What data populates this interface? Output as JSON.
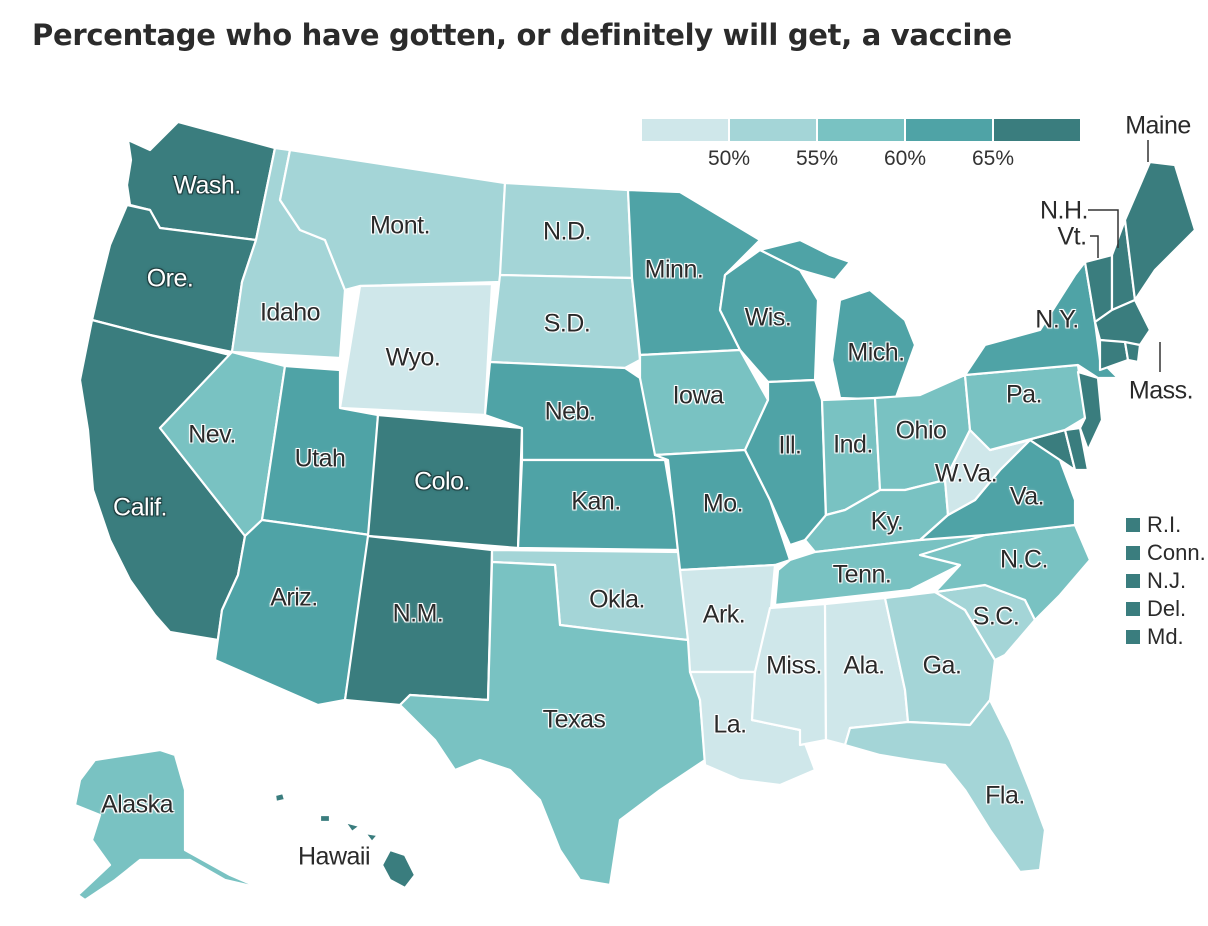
{
  "title": "Percentage who have gotten, or definitely will get, a vaccine",
  "colors": {
    "c1": "#cfe7ea",
    "c2": "#a4d5d7",
    "c3": "#79c2c2",
    "c4": "#4fa3a6",
    "c5": "#3a7d7e"
  },
  "legend": {
    "swatches": [
      "c1",
      "c2",
      "c3",
      "c4",
      "c5"
    ],
    "ticks": [
      "50%",
      "55%",
      "60%",
      "65%"
    ]
  },
  "small_states_legend": [
    {
      "label": "R.I.",
      "color": "c5"
    },
    {
      "label": "Conn.",
      "color": "c5"
    },
    {
      "label": "N.J.",
      "color": "c5"
    },
    {
      "label": "Del.",
      "color": "c5"
    },
    {
      "label": "Md.",
      "color": "c5"
    }
  ],
  "states": {
    "wash": {
      "label": "Wash.",
      "bin": "c5"
    },
    "ore": {
      "label": "Ore.",
      "bin": "c5"
    },
    "calif": {
      "label": "Calif.",
      "bin": "c5"
    },
    "idaho": {
      "label": "Idaho",
      "bin": "c2"
    },
    "nev": {
      "label": "Nev.",
      "bin": "c3"
    },
    "mont": {
      "label": "Mont.",
      "bin": "c2"
    },
    "wyo": {
      "label": "Wyo.",
      "bin": "c1"
    },
    "utah": {
      "label": "Utah",
      "bin": "c4"
    },
    "ariz": {
      "label": "Ariz.",
      "bin": "c4"
    },
    "colo": {
      "label": "Colo.",
      "bin": "c5"
    },
    "nm": {
      "label": "N.M.",
      "bin": "c5"
    },
    "nd": {
      "label": "N.D.",
      "bin": "c2"
    },
    "sd": {
      "label": "S.D.",
      "bin": "c2"
    },
    "neb": {
      "label": "Neb.",
      "bin": "c4"
    },
    "kan": {
      "label": "Kan.",
      "bin": "c4"
    },
    "okla": {
      "label": "Okla.",
      "bin": "c2"
    },
    "texas": {
      "label": "Texas",
      "bin": "c3"
    },
    "minn": {
      "label": "Minn.",
      "bin": "c4"
    },
    "iowa": {
      "label": "Iowa",
      "bin": "c3"
    },
    "mo": {
      "label": "Mo.",
      "bin": "c4"
    },
    "ark": {
      "label": "Ark.",
      "bin": "c1"
    },
    "la": {
      "label": "La.",
      "bin": "c1"
    },
    "wis": {
      "label": "Wis.",
      "bin": "c4"
    },
    "ill": {
      "label": "Ill.",
      "bin": "c4"
    },
    "mich": {
      "label": "Mich.",
      "bin": "c4"
    },
    "ind": {
      "label": "Ind.",
      "bin": "c3"
    },
    "ohio": {
      "label": "Ohio",
      "bin": "c3"
    },
    "ky": {
      "label": "Ky.",
      "bin": "c3"
    },
    "tenn": {
      "label": "Tenn.",
      "bin": "c3"
    },
    "miss": {
      "label": "Miss.",
      "bin": "c1"
    },
    "ala": {
      "label": "Ala.",
      "bin": "c1"
    },
    "ga": {
      "label": "Ga.",
      "bin": "c2"
    },
    "fla": {
      "label": "Fla.",
      "bin": "c2"
    },
    "sc": {
      "label": "S.C.",
      "bin": "c2"
    },
    "nc": {
      "label": "N.C.",
      "bin": "c3"
    },
    "va": {
      "label": "Va.",
      "bin": "c4"
    },
    "wva": {
      "label": "W.Va.",
      "bin": "c1"
    },
    "pa": {
      "label": "Pa.",
      "bin": "c3"
    },
    "ny": {
      "label": "N.Y.",
      "bin": "c4"
    },
    "vt": {
      "label": "Vt.",
      "bin": "c5"
    },
    "nh": {
      "label": "N.H.",
      "bin": "c5"
    },
    "maine": {
      "label": "Maine",
      "bin": "c5"
    },
    "mass": {
      "label": "Mass.",
      "bin": "c5"
    },
    "alaska": {
      "label": "Alaska",
      "bin": "c3"
    },
    "hawaii": {
      "label": "Hawaii",
      "bin": "c5"
    }
  }
}
